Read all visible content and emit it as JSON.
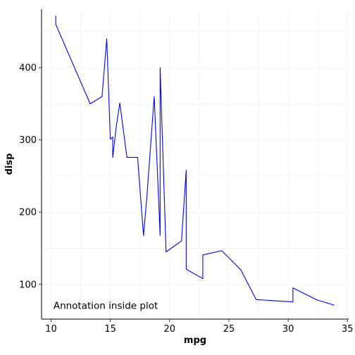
{
  "chart_data": {
    "type": "line",
    "xlabel": "mpg",
    "ylabel": "disp",
    "xlim": [
      9.2,
      35.1
    ],
    "ylim": [
      52,
      481
    ],
    "xticks": [
      10,
      15,
      20,
      25,
      30,
      35
    ],
    "yticks": [
      100,
      200,
      300,
      400
    ],
    "grid": true,
    "line_color": "#0000ff",
    "annotation": {
      "text": "Annotation inside plot",
      "x": 10.2,
      "y": 66
    },
    "series": [
      {
        "x": [
          10.4,
          10.4,
          13.3,
          14.3,
          14.7,
          15.0,
          15.2,
          15.2,
          15.5,
          15.8,
          16.4,
          17.3,
          17.8,
          18.1,
          18.7,
          19.2,
          19.2,
          19.7,
          21.0,
          21.0,
          21.4,
          21.4,
          21.5,
          22.8,
          22.8,
          24.4,
          26.0,
          27.3,
          30.4,
          30.4,
          32.4,
          33.9
        ],
        "y": [
          472.0,
          460.0,
          350.0,
          360.0,
          440.0,
          301.0,
          304.0,
          275.8,
          318.0,
          351.0,
          275.8,
          275.8,
          167.6,
          225.0,
          360.0,
          167.6,
          400.0,
          145.0,
          160.0,
          160.0,
          258.0,
          121.0,
          120.1,
          108.0,
          140.8,
          146.7,
          120.3,
          79.0,
          75.7,
          95.1,
          78.7,
          71.1
        ]
      }
    ]
  }
}
